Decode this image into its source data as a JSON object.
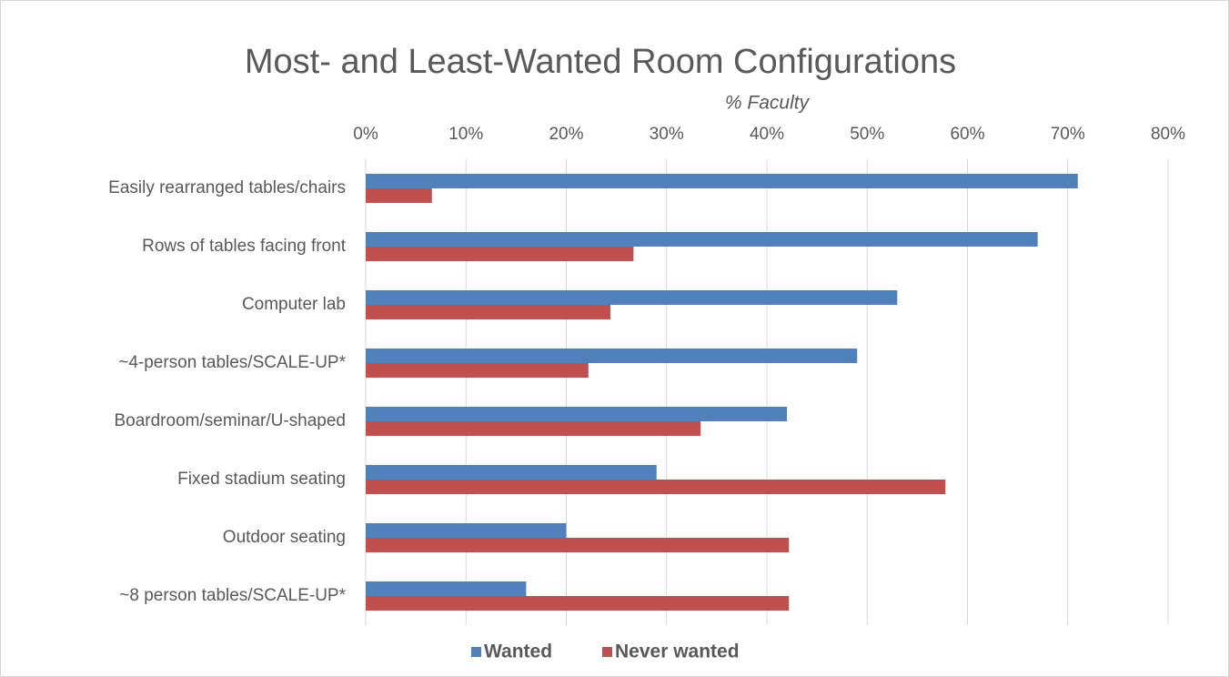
{
  "chart_data": {
    "type": "bar",
    "orientation": "horizontal",
    "title": "Most- and Least-Wanted Room Configurations",
    "x_label": "% Faculty",
    "categories": [
      "Easily rearranged tables/chairs",
      "Rows of tables facing front",
      "Computer lab",
      "~4-person tables/SCALE-UP*",
      "Boardroom/seminar/U-shaped",
      "Fixed stadium seating",
      "Outdoor seating",
      "~8 person tables/SCALE-UP*"
    ],
    "series": [
      {
        "name": "Wanted",
        "color": "#4f81bd",
        "values": [
          71,
          67,
          53,
          49,
          42,
          29,
          20,
          16
        ]
      },
      {
        "name": "Never wanted",
        "color": "#c0504d",
        "values": [
          6.6,
          26.7,
          24.4,
          22.2,
          33.4,
          57.8,
          42.2,
          42.2
        ]
      }
    ],
    "xlim": [
      0,
      80
    ],
    "xticks": [
      {
        "value": 0,
        "label": "0%"
      },
      {
        "value": 10,
        "label": "10%"
      },
      {
        "value": 20,
        "label": "20%"
      },
      {
        "value": 30,
        "label": "30%"
      },
      {
        "value": 40,
        "label": "40%"
      },
      {
        "value": 50,
        "label": "50%"
      },
      {
        "value": 60,
        "label": "60%"
      },
      {
        "value": 70,
        "label": "70%"
      },
      {
        "value": 80,
        "label": "80%"
      }
    ],
    "grid": true,
    "legend": "bottom"
  }
}
